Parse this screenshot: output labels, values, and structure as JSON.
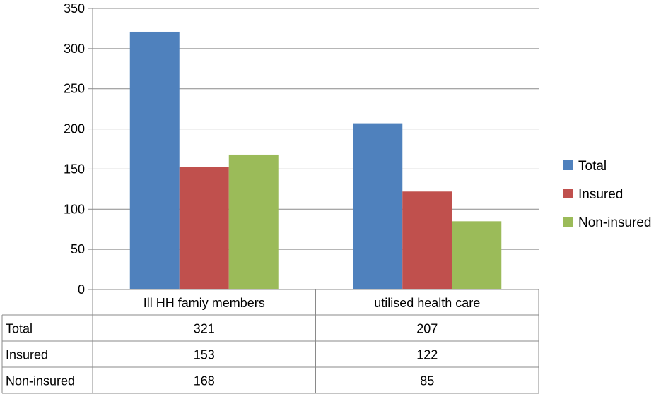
{
  "chart_data": {
    "type": "bar",
    "title": "",
    "xlabel": "",
    "ylabel": "",
    "ylim": [
      0,
      350
    ],
    "yticks": [
      0,
      50,
      100,
      150,
      200,
      250,
      300,
      350
    ],
    "grid": true,
    "legend_position": "right",
    "categories": [
      "Ill HH famiy members",
      "utilised health care"
    ],
    "series": [
      {
        "name": "Total",
        "color": "#4F81BD",
        "values": [
          321,
          207
        ]
      },
      {
        "name": "Insured",
        "color": "#C0504D",
        "values": [
          153,
          122
        ]
      },
      {
        "name": "Non-insured",
        "color": "#9BBB59",
        "values": [
          168,
          85
        ]
      }
    ],
    "data_table": true
  }
}
